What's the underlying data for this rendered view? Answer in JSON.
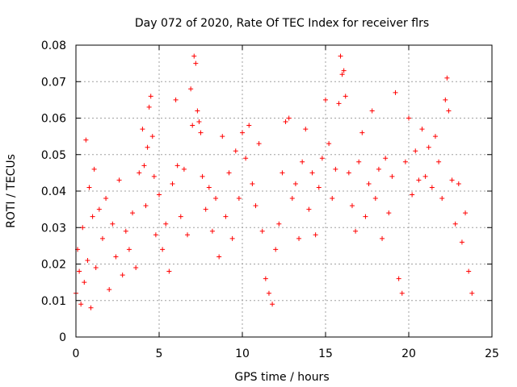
{
  "chart_data": {
    "type": "scatter",
    "title": "Day 072 of 2020, Rate Of TEC Index for receiver flrs",
    "xlabel": "GPS time / hours",
    "ylabel": "ROTI / TECUs",
    "xlim": [
      0,
      25
    ],
    "ylim": [
      0,
      0.08
    ],
    "xticks": [
      "0",
      "5",
      "10",
      "15",
      "20",
      "25"
    ],
    "yticks": [
      "0",
      "0.01",
      "0.02",
      "0.03",
      "0.04",
      "0.05",
      "0.06",
      "0.07",
      "0.08"
    ],
    "xtick_values": [
      0,
      5,
      10,
      15,
      20,
      25
    ],
    "ytick_values": [
      0,
      0.01,
      0.02,
      0.03,
      0.04,
      0.05,
      0.06,
      0.07,
      0.08
    ],
    "grid": true,
    "marker": "plus",
    "color": "#ff0000",
    "points": [
      [
        0.0,
        0.012
      ],
      [
        0.1,
        0.024
      ],
      [
        0.2,
        0.018
      ],
      [
        0.3,
        0.009
      ],
      [
        0.4,
        0.03
      ],
      [
        0.5,
        0.015
      ],
      [
        0.6,
        0.054
      ],
      [
        0.7,
        0.021
      ],
      [
        0.8,
        0.041
      ],
      [
        0.9,
        0.008
      ],
      [
        1.0,
        0.033
      ],
      [
        1.1,
        0.046
      ],
      [
        1.2,
        0.019
      ],
      [
        1.4,
        0.035
      ],
      [
        1.6,
        0.027
      ],
      [
        1.8,
        0.038
      ],
      [
        2.0,
        0.013
      ],
      [
        2.2,
        0.031
      ],
      [
        2.4,
        0.022
      ],
      [
        2.6,
        0.043
      ],
      [
        2.8,
        0.017
      ],
      [
        3.0,
        0.029
      ],
      [
        3.2,
        0.024
      ],
      [
        3.4,
        0.034
      ],
      [
        3.6,
        0.019
      ],
      [
        3.8,
        0.045
      ],
      [
        4.0,
        0.057
      ],
      [
        4.1,
        0.047
      ],
      [
        4.2,
        0.036
      ],
      [
        4.3,
        0.052
      ],
      [
        4.4,
        0.063
      ],
      [
        4.5,
        0.066
      ],
      [
        4.6,
        0.055
      ],
      [
        4.7,
        0.044
      ],
      [
        4.8,
        0.028
      ],
      [
        5.0,
        0.039
      ],
      [
        5.2,
        0.024
      ],
      [
        5.4,
        0.031
      ],
      [
        5.6,
        0.018
      ],
      [
        5.8,
        0.042
      ],
      [
        6.0,
        0.065
      ],
      [
        6.1,
        0.047
      ],
      [
        6.3,
        0.033
      ],
      [
        6.5,
        0.046
      ],
      [
        6.7,
        0.028
      ],
      [
        6.9,
        0.068
      ],
      [
        7.0,
        0.058
      ],
      [
        7.1,
        0.077
      ],
      [
        7.2,
        0.075
      ],
      [
        7.3,
        0.062
      ],
      [
        7.4,
        0.059
      ],
      [
        7.5,
        0.056
      ],
      [
        7.6,
        0.044
      ],
      [
        7.8,
        0.035
      ],
      [
        8.0,
        0.041
      ],
      [
        8.2,
        0.029
      ],
      [
        8.4,
        0.038
      ],
      [
        8.6,
        0.022
      ],
      [
        8.8,
        0.055
      ],
      [
        9.0,
        0.033
      ],
      [
        9.2,
        0.045
      ],
      [
        9.4,
        0.027
      ],
      [
        9.6,
        0.051
      ],
      [
        9.8,
        0.038
      ],
      [
        10.0,
        0.056
      ],
      [
        10.2,
        0.049
      ],
      [
        10.4,
        0.058
      ],
      [
        10.6,
        0.042
      ],
      [
        10.8,
        0.036
      ],
      [
        11.0,
        0.053
      ],
      [
        11.2,
        0.029
      ],
      [
        11.4,
        0.016
      ],
      [
        11.6,
        0.012
      ],
      [
        11.8,
        0.009
      ],
      [
        12.0,
        0.024
      ],
      [
        12.2,
        0.031
      ],
      [
        12.4,
        0.045
      ],
      [
        12.6,
        0.059
      ],
      [
        12.8,
        0.06
      ],
      [
        13.0,
        0.038
      ],
      [
        13.2,
        0.042
      ],
      [
        13.4,
        0.027
      ],
      [
        13.6,
        0.048
      ],
      [
        13.8,
        0.057
      ],
      [
        14.0,
        0.035
      ],
      [
        14.2,
        0.045
      ],
      [
        14.4,
        0.028
      ],
      [
        14.6,
        0.041
      ],
      [
        14.8,
        0.049
      ],
      [
        15.0,
        0.065
      ],
      [
        15.2,
        0.053
      ],
      [
        15.4,
        0.038
      ],
      [
        15.6,
        0.046
      ],
      [
        15.8,
        0.064
      ],
      [
        15.9,
        0.077
      ],
      [
        16.0,
        0.072
      ],
      [
        16.1,
        0.073
      ],
      [
        16.2,
        0.066
      ],
      [
        16.4,
        0.045
      ],
      [
        16.6,
        0.036
      ],
      [
        16.8,
        0.029
      ],
      [
        17.0,
        0.048
      ],
      [
        17.2,
        0.056
      ],
      [
        17.4,
        0.033
      ],
      [
        17.6,
        0.042
      ],
      [
        17.8,
        0.062
      ],
      [
        18.0,
        0.038
      ],
      [
        18.2,
        0.046
      ],
      [
        18.4,
        0.027
      ],
      [
        18.6,
        0.049
      ],
      [
        18.8,
        0.034
      ],
      [
        19.0,
        0.044
      ],
      [
        19.2,
        0.067
      ],
      [
        19.4,
        0.016
      ],
      [
        19.6,
        0.012
      ],
      [
        19.8,
        0.048
      ],
      [
        20.0,
        0.06
      ],
      [
        20.2,
        0.039
      ],
      [
        20.4,
        0.051
      ],
      [
        20.6,
        0.043
      ],
      [
        20.8,
        0.057
      ],
      [
        21.0,
        0.044
      ],
      [
        21.2,
        0.052
      ],
      [
        21.4,
        0.041
      ],
      [
        21.6,
        0.055
      ],
      [
        21.8,
        0.048
      ],
      [
        22.0,
        0.038
      ],
      [
        22.2,
        0.065
      ],
      [
        22.3,
        0.071
      ],
      [
        22.4,
        0.062
      ],
      [
        22.6,
        0.043
      ],
      [
        22.8,
        0.031
      ],
      [
        23.0,
        0.042
      ],
      [
        23.2,
        0.026
      ],
      [
        23.4,
        0.034
      ],
      [
        23.6,
        0.018
      ],
      [
        23.8,
        0.012
      ]
    ]
  }
}
